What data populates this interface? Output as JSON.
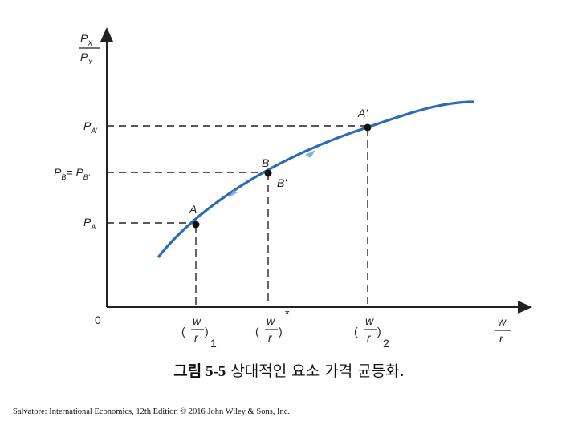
{
  "diagram": {
    "origin_label": "0",
    "y_axis": {
      "num_main": "P",
      "num_sub": "X",
      "den_main": "P",
      "den_sub": "Y"
    },
    "x_axis": {
      "num": "w",
      "den": "r"
    },
    "y_ticks": {
      "pa_prime": {
        "main": "P",
        "sub": "A'"
      },
      "pb": {
        "main": "P",
        "sub": "B",
        "eq": "= ",
        "main2": "P",
        "sub2": "B'"
      },
      "pa": {
        "main": "P",
        "sub": "A"
      }
    },
    "x_ticks": {
      "t1": {
        "num": "w",
        "den": "r",
        "sub": "1"
      },
      "star": {
        "num": "w",
        "den": "r",
        "sup": "*"
      },
      "t2": {
        "num": "w",
        "den": "r",
        "sub": "2"
      }
    },
    "points": {
      "a": "A",
      "b": "B",
      "b_prime": "B'",
      "a_prime": "A'"
    },
    "colors": {
      "curve": "#2d6bb5",
      "arrow": "#8aaed6",
      "axis": "#222222"
    }
  },
  "caption": {
    "figure_no": "그림 5-5",
    "text": " 상대적인 요소 가격 균등화."
  },
  "footer": {
    "text": "Salvatore: International Economics, 12th Edition © 2016 John Wiley & Sons, Inc."
  }
}
